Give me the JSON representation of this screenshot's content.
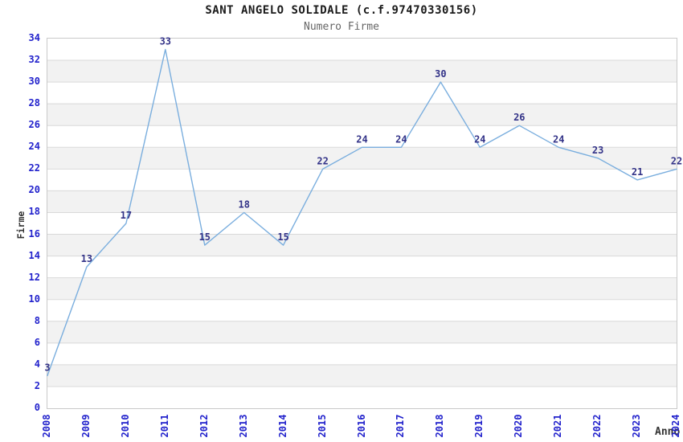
{
  "chart_data": {
    "type": "line",
    "title": "SANT ANGELO SOLIDALE (c.f.97470330156)",
    "subtitle": "Numero Firme",
    "xlabel": "Anno",
    "ylabel": "Firme",
    "categories": [
      "2008",
      "2009",
      "2010",
      "2011",
      "2012",
      "2013",
      "2014",
      "2015",
      "2016",
      "2017",
      "2018",
      "2019",
      "2020",
      "2021",
      "2022",
      "2023",
      "2024"
    ],
    "values": [
      3,
      13,
      17,
      33,
      15,
      18,
      15,
      22,
      24,
      24,
      30,
      24,
      26,
      24,
      23,
      21,
      22
    ],
    "ylim": [
      0,
      34
    ],
    "ytick_step": 2,
    "grid": "horizontal-only",
    "band_fill": "alternating",
    "legend": "none",
    "colors": {
      "line": "#7aaede",
      "data_label": "#333388",
      "tick_label": "#2222cc",
      "title": "#1a1a1a",
      "subtitle": "#666666",
      "axis_title": "#333333",
      "band": "#f2f2f2",
      "gridline": "#d9d9d9",
      "plot_border": "#c9c9c9",
      "background": "#ffffff"
    }
  }
}
